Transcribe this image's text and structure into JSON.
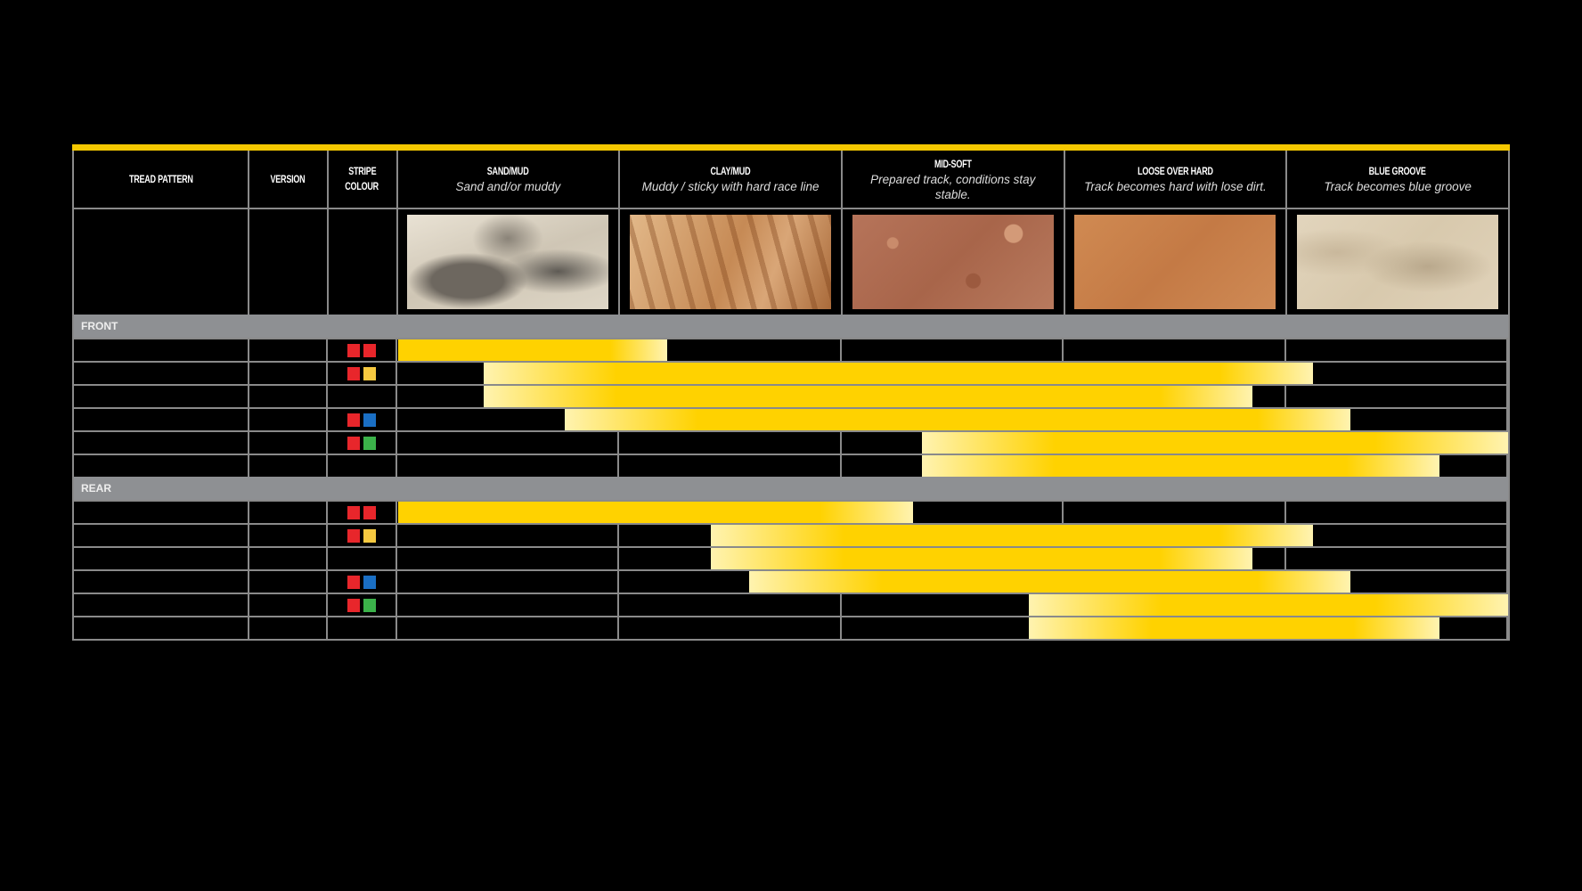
{
  "header": {
    "tread_pattern": "TREAD PATTERN",
    "version": "VERSION",
    "stripe_colour_1": "STRIPE",
    "stripe_colour_2": "COLOUR",
    "terrains": [
      {
        "title": "SAND/MUD",
        "subtitle": "Sand and/or muddy",
        "texture": "sand"
      },
      {
        "title": "CLAY/MUD",
        "subtitle": "Muddy / sticky with hard race line",
        "texture": "clay"
      },
      {
        "title": "MID-SOFT",
        "subtitle": "Prepared track, conditions stay stable.",
        "texture": "midsoft"
      },
      {
        "title": "LOOSE OVER HARD",
        "subtitle": "Track becomes hard with lose dirt.",
        "texture": "loose"
      },
      {
        "title": "BLUE GROOVE",
        "subtitle": "Track becomes blue groove",
        "texture": "bluegroove"
      }
    ]
  },
  "colors": {
    "bar": "#ffd200",
    "bar_fade": "#fff3b0",
    "red": "#e8262b",
    "yellow": "#f6c940",
    "blue": "#1a6fc4",
    "green": "#3bb24a",
    "accent": "#f5c800"
  },
  "sections": [
    {
      "label": "FRONT",
      "rows": [
        {
          "stripes": [
            "red",
            "red"
          ],
          "range": [
            0,
            1.21
          ]
        },
        {
          "stripes": [
            "red",
            "yellow"
          ],
          "range": [
            0.385,
            4.12
          ]
        },
        {
          "stripes": [],
          "range": [
            0.385,
            3.85
          ]
        },
        {
          "stripes": [
            "red",
            "blue"
          ],
          "range": [
            0.75,
            4.29
          ]
        },
        {
          "stripes": [
            "red",
            "green"
          ],
          "range": [
            2.36,
            5.0
          ]
        },
        {
          "stripes": [],
          "range": [
            2.36,
            4.69
          ]
        }
      ]
    },
    {
      "label": "REAR",
      "rows": [
        {
          "stripes": [
            "red",
            "red"
          ],
          "range": [
            0,
            2.32
          ]
        },
        {
          "stripes": [
            "red",
            "yellow"
          ],
          "range": [
            1.41,
            4.12
          ]
        },
        {
          "stripes": [],
          "range": [
            1.41,
            3.85
          ]
        },
        {
          "stripes": [
            "red",
            "blue"
          ],
          "range": [
            1.58,
            4.29
          ]
        },
        {
          "stripes": [
            "red",
            "green"
          ],
          "range": [
            2.84,
            5.0
          ]
        },
        {
          "stripes": [],
          "range": [
            2.84,
            4.69
          ]
        }
      ]
    }
  ]
}
